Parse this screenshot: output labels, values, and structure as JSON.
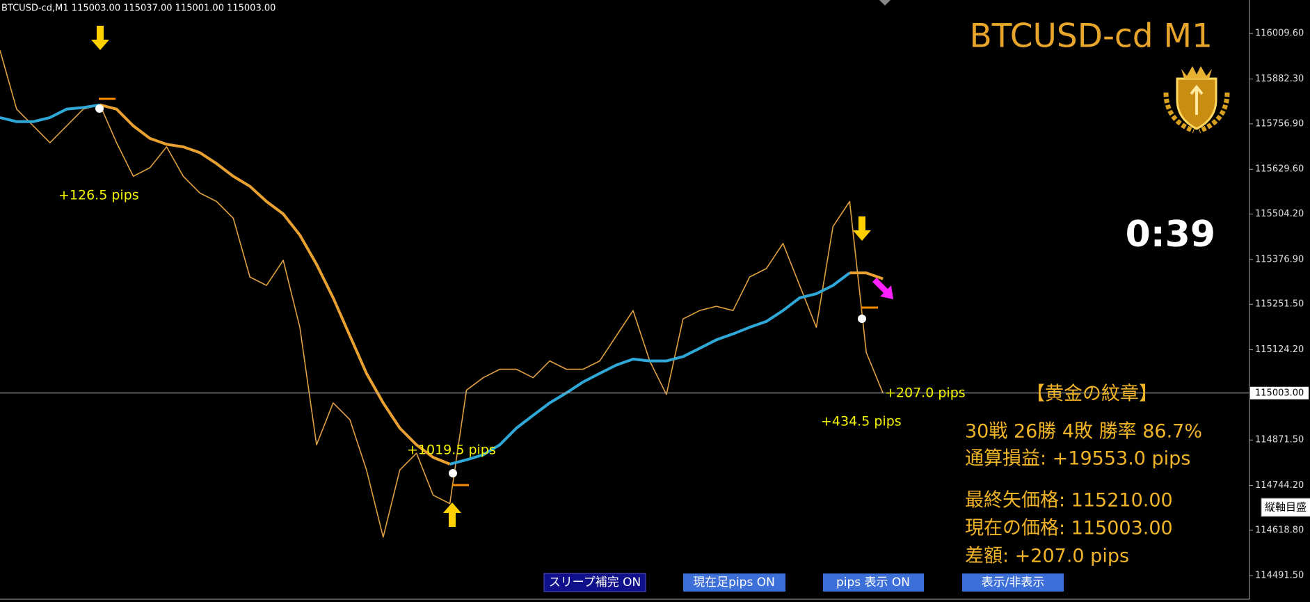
{
  "chart_data": {
    "type": "line",
    "header": "BTCUSD-cd,M1  115003.00 115037.00 115001.00 115003.00",
    "title": "BTCUSD-cd M1",
    "timer": "0:39",
    "x": [
      0,
      5,
      10,
      15,
      20,
      25,
      30,
      35,
      40,
      45,
      50,
      55,
      60,
      65,
      70,
      75,
      80,
      85,
      90,
      95,
      100,
      105,
      110,
      115,
      120,
      125,
      130,
      135,
      140,
      145,
      150,
      155,
      160,
      165,
      170,
      175,
      180,
      185,
      190,
      195,
      200,
      205,
      210,
      215,
      220,
      225,
      230,
      235,
      240,
      245,
      250,
      255,
      260,
      265
    ],
    "xlim": [
      0,
      375
    ],
    "ylim": [
      114425.7,
      116103.6
    ],
    "yticks": [
      {
        "value": 116009.6,
        "label": "116009.60"
      },
      {
        "value": 115882.3,
        "label": "115882.30"
      },
      {
        "value": 115756.9,
        "label": "115756.90"
      },
      {
        "value": 115629.6,
        "label": "115629.60"
      },
      {
        "value": 115504.2,
        "label": "115504.20"
      },
      {
        "value": 115376.9,
        "label": "115376.90"
      },
      {
        "value": 115251.5,
        "label": "115251.50"
      },
      {
        "value": 115124.2,
        "label": "115124.20"
      },
      {
        "value": 114871.5,
        "label": "114871.50"
      },
      {
        "value": 114744.2,
        "label": "114744.20"
      },
      {
        "value": 114618.8,
        "label": "114618.80"
      },
      {
        "value": 114491.5,
        "label": "114491.50"
      }
    ],
    "current_price": {
      "value": 115003,
      "label": "115003.00"
    },
    "series": [
      {
        "color": "#e0a040",
        "values": [
          115962.5,
          115798,
          115751,
          115704,
          115751,
          115798,
          115810,
          115704,
          115610,
          115634,
          115692.5,
          115610,
          115563,
          115539.5,
          115492.5,
          115328,
          115304.5,
          115375,
          115187,
          114858,
          114975.5,
          114928.5,
          114787.5,
          114599.5,
          114787.5,
          114834.5,
          114717,
          114693.5,
          115011,
          115046,
          115069.5,
          115069.5,
          115046,
          115093,
          115069.5,
          115069.5,
          115093,
          115163.5,
          115234,
          115093,
          114999,
          115210.5,
          115234,
          115246,
          115234,
          115328,
          115351.5,
          115422,
          115304.5,
          115187,
          115469,
          115539.5,
          115116.5,
          115003
        ]
      },
      {
        "color": "#2fa8d8",
        "values": [
          115774.5,
          115763,
          115763,
          115774.5,
          115798,
          115802.5,
          115810,
          null,
          null,
          null,
          null,
          null,
          null,
          null,
          null,
          null,
          null,
          null,
          null,
          null,
          null,
          null,
          null,
          null,
          null,
          null,
          null,
          114804,
          114816,
          114830,
          114858,
          114905,
          114940.5,
          114975.5,
          115003.5,
          115034,
          115058,
          115081.5,
          115098,
          115093,
          115093,
          115105,
          115128.5,
          115152,
          115168.5,
          115187,
          115203.5,
          115234,
          115269.5,
          115281,
          115304.5,
          115339.5,
          null,
          null
        ]
      },
      {
        "color": "#e8a030",
        "values": [
          null,
          null,
          null,
          null,
          null,
          null,
          115810,
          115798,
          115751,
          115716,
          115699.5,
          115692.5,
          115676,
          115645.5,
          115610,
          115582,
          115539.5,
          115504.5,
          115445.5,
          115363.5,
          115269.5,
          115163.5,
          115058,
          114975.5,
          114905,
          114858,
          114823,
          114804,
          null,
          null,
          null,
          null,
          null,
          null,
          null,
          null,
          null,
          null,
          null,
          null,
          null,
          null,
          null,
          null,
          null,
          null,
          null,
          null,
          null,
          null,
          null,
          115339.5,
          115339.5,
          115323
        ]
      }
    ],
    "annotations": [
      "+126.5 pips",
      "+1019.5 pips",
      "+434.5 pips",
      "+207.0 pips"
    ],
    "panel": {
      "title": "【黄金の紋章】",
      "record": "30戦 26勝 4敗  勝率 86.7%",
      "total": "通算損益:  +19553.0 pips",
      "last_arrow": "最終矢価格: 115210.00",
      "current": "現在の価格: 115003.00",
      "diff": "差額:     +207.0 pips"
    },
    "buttons": [
      "スリープ補完 ON",
      "現在足pips ON",
      "pips 表示  ON",
      "表示/非表示"
    ],
    "side_tab": "縦軸目盛"
  }
}
